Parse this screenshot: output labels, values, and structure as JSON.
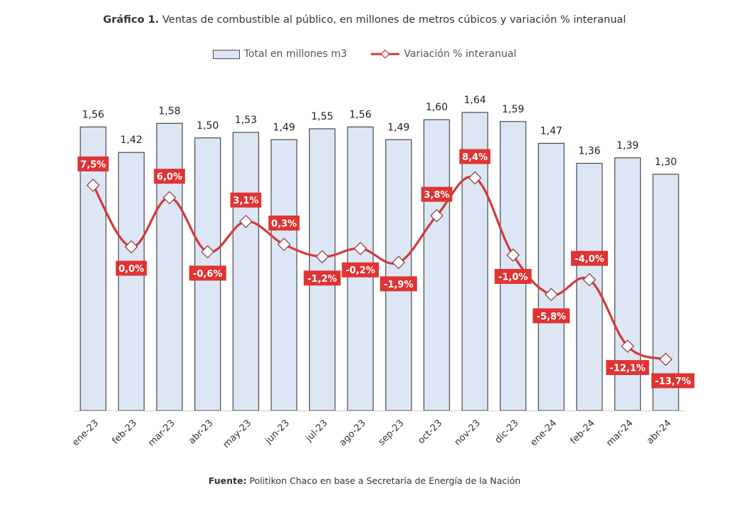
{
  "title_prefix": "Gráfico 1.",
  "title_text": " Ventas de combustible al público, en millones de metros cúbicos y variación % interanual",
  "legend": {
    "bars": "Total en millones m3",
    "line": "Variación % interanual"
  },
  "source_prefix": "Fuente:",
  "source_text": " Politikon Chaco en base a Secretaría de Energía de la Nación",
  "colors": {
    "bar_fill": "#dde6f4",
    "bar_stroke": "#4a4a4a",
    "line": "#d23a3a",
    "label_bg": "#e03434"
  },
  "chart_data": {
    "type": "bar",
    "categories": [
      "ene-23",
      "feb-23",
      "mar-23",
      "abr-23",
      "may-23",
      "jun-23",
      "jul-23",
      "ago-23",
      "sep-23",
      "oct-23",
      "nov-23",
      "dic-23",
      "ene-24",
      "feb-24",
      "mar-24",
      "abr-24"
    ],
    "series": [
      {
        "name": "Total en millones m3",
        "type": "bar",
        "values": [
          1.56,
          1.42,
          1.58,
          1.5,
          1.53,
          1.49,
          1.55,
          1.56,
          1.49,
          1.6,
          1.64,
          1.59,
          1.47,
          1.36,
          1.39,
          1.3
        ],
        "labels": [
          "1,56",
          "1,42",
          "1,58",
          "1,50",
          "1,53",
          "1,49",
          "1,55",
          "1,56",
          "1,49",
          "1,60",
          "1,64",
          "1,59",
          "1,47",
          "1,36",
          "1,39",
          "1,30"
        ]
      },
      {
        "name": "Variación % interanual",
        "type": "line",
        "values": [
          7.5,
          0.0,
          6.0,
          -0.6,
          3.1,
          0.3,
          -1.2,
          -0.2,
          -1.9,
          3.8,
          8.4,
          -1.0,
          -5.8,
          -4.0,
          -12.1,
          -13.7
        ],
        "labels": [
          "7,5%",
          "0,0%",
          "6,0%",
          "-0,6%",
          "3,1%",
          "0,3%",
          "-1,2%",
          "-0,2%",
          "-1,9%",
          "3,8%",
          "8,4%",
          "-1,0%",
          "-5,8%",
          "-4,0%",
          "-12,1%",
          "-13,7%"
        ],
        "label_position": [
          "above",
          "below",
          "above",
          "below",
          "above",
          "above",
          "below",
          "below",
          "below",
          "above",
          "above",
          "below",
          "below",
          "above",
          "below",
          "below"
        ]
      }
    ],
    "bar_ylim": [
      0,
      1.64
    ],
    "line_ylim": [
      -15,
      10
    ],
    "grid": false
  }
}
